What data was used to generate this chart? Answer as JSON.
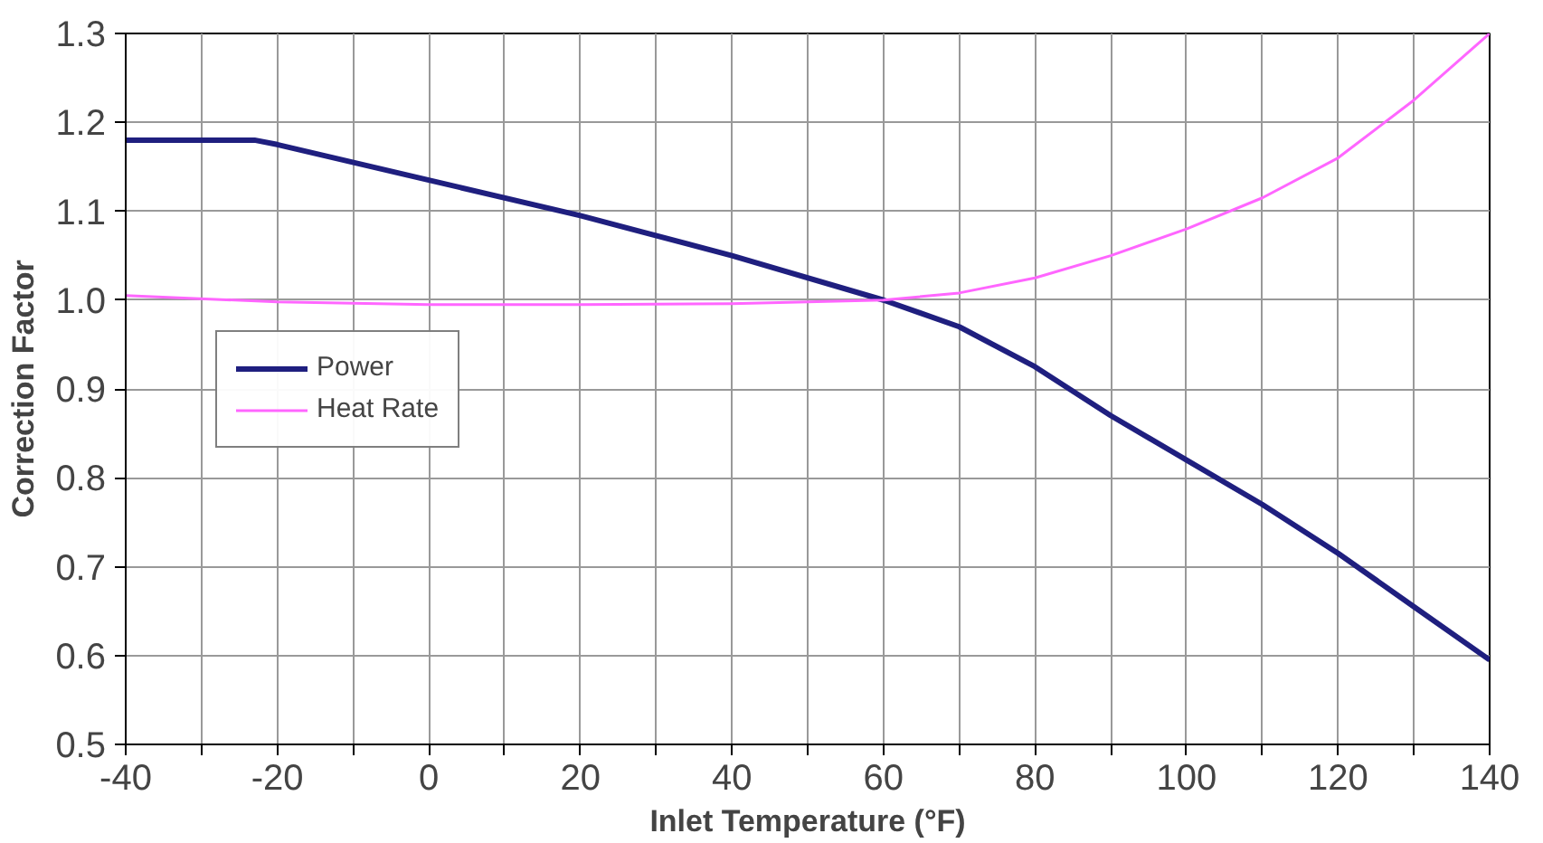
{
  "chart_data": {
    "type": "line",
    "xlabel": "Inlet Temperature (°F)",
    "ylabel": "Correction Factor",
    "xlim": [
      -40,
      140
    ],
    "ylim": [
      0.5,
      1.3
    ],
    "xticks": [
      -40,
      {
        "value": -30,
        "label": null
      },
      -20,
      {
        "value": -10,
        "label": null
      },
      0,
      {
        "value": 10,
        "label": null
      },
      20,
      {
        "value": 30,
        "label": null
      },
      40,
      {
        "value": 50,
        "label": null
      },
      60,
      {
        "value": 70,
        "label": null
      },
      80,
      {
        "value": 90,
        "label": null
      },
      100,
      {
        "value": 110,
        "label": null
      },
      120,
      {
        "value": 130,
        "label": null
      },
      140
    ],
    "yticks": [
      {
        "value": 0.5,
        "label": "0.5"
      },
      {
        "value": 0.6,
        "label": "0.6"
      },
      {
        "value": 0.7,
        "label": "0.7"
      },
      {
        "value": 0.8,
        "label": "0.8"
      },
      {
        "value": 0.9,
        "label": "0.9"
      },
      {
        "value": 1.0,
        "label": "1.0"
      },
      {
        "value": 1.1,
        "label": "1.1"
      },
      {
        "value": 1.2,
        "label": "1.2"
      },
      {
        "value": 1.3,
        "label": "1.3"
      }
    ],
    "grid": true,
    "legend": "left",
    "marker": "none",
    "line_style": "solid",
    "series": [
      {
        "name": "Power",
        "color": "#1f1f7f",
        "x": [
          -40,
          -23,
          -20,
          0,
          20,
          40,
          60,
          70,
          80,
          90,
          100,
          110,
          120,
          130,
          140
        ],
        "values": [
          1.18,
          1.18,
          1.175,
          1.135,
          1.095,
          1.05,
          1.0,
          0.97,
          0.925,
          0.87,
          0.82,
          0.77,
          0.715,
          0.655,
          0.595
        ]
      },
      {
        "name": "Heat Rate",
        "color": "#ff66ff",
        "x": [
          -40,
          -20,
          0,
          20,
          40,
          50,
          60,
          70,
          80,
          90,
          100,
          110,
          120,
          130,
          140
        ],
        "values": [
          1.005,
          0.998,
          0.995,
          0.995,
          0.996,
          0.998,
          1.0,
          1.008,
          1.025,
          1.05,
          1.08,
          1.115,
          1.16,
          1.225,
          1.3
        ]
      }
    ]
  }
}
